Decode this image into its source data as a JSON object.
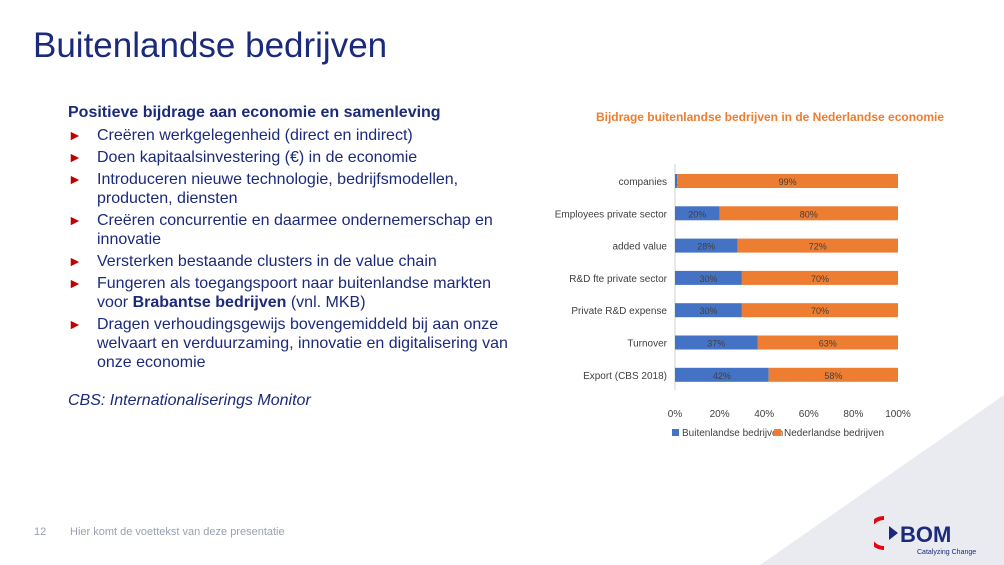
{
  "slide": {
    "title": "Buitenlandse bedrijven",
    "subheading": "Positieve bijdrage aan economie en samenleving",
    "bullets": [
      {
        "text": "Creëren werkgelegenheid (direct en indirect)"
      },
      {
        "text": "Doen kapitaalsinvestering (€) in de economie"
      },
      {
        "text": "Introduceren nieuwe technologie, bedrijfsmodellen, producten, diensten"
      },
      {
        "text": "Creëren concurrentie en daarmee ondernemerschap en innovatie"
      },
      {
        "text": "Versterken bestaande clusters in de value chain"
      },
      {
        "pre": "Fungeren als toegangspoort naar buitenlandse markten voor ",
        "bold": "Brabantse bedrijven",
        "post": " (vnl. MKB)"
      },
      {
        "text": "Dragen verhoudingsgewijs bovengemiddeld bij aan onze welvaart en verduurzaming, innovatie en digitalisering van onze economie"
      }
    ],
    "source": "CBS: Internationaliserings Monitor",
    "page_number": "12",
    "footer": "Hier komt de voettekst van deze presentatie",
    "logo_text": "BOM",
    "logo_tagline": "Catalyzing Change"
  },
  "colors": {
    "title": "#1b2a7a",
    "bullet_arrow": "#c00000",
    "series_buitenlandse": "#4472c4",
    "series_nederlandse": "#ed7d31",
    "chart_title": "#ed7d31",
    "logo_red": "#e30613"
  },
  "chart_data": {
    "type": "bar",
    "orientation": "horizontal",
    "stacked": "percent",
    "title": "Bijdrage buitenlandse bedrijven in de Nederlandse economie",
    "categories": [
      "companies",
      "Employees private sector",
      "added value",
      "R&D fte private sector",
      "Private R&D expense",
      "Turnover",
      "Export (CBS 2018)"
    ],
    "series": [
      {
        "name": "Buitenlandse bedrijven",
        "values": [
          1,
          20,
          28,
          30,
          30,
          37,
          42
        ]
      },
      {
        "name": "Nederlandse bedrijven",
        "values": [
          99,
          80,
          72,
          70,
          70,
          63,
          58
        ]
      }
    ],
    "x_ticks": [
      "0%",
      "20%",
      "40%",
      "60%",
      "80%",
      "100%"
    ],
    "xlim": [
      0,
      100
    ],
    "grid": false,
    "legend_position": "bottom"
  }
}
